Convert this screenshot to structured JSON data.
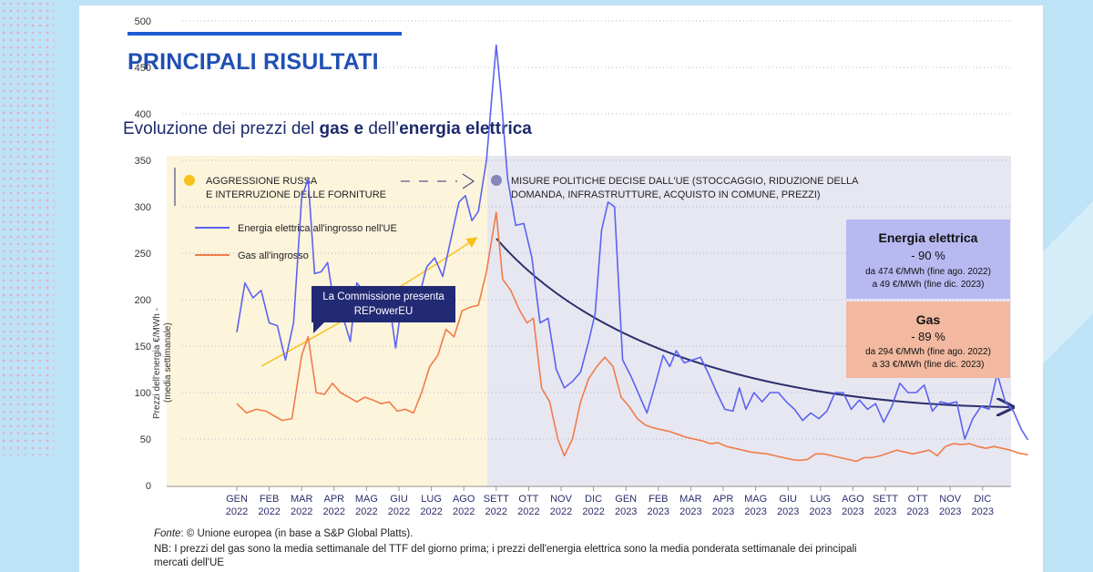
{
  "header": {
    "title": "PRINCIPALI RISULTATI",
    "subtitle_pre": "Evoluzione dei prezzi del ",
    "subtitle_b1": "gas e",
    "subtitle_mid": " dell’",
    "subtitle_b2": "energia elettrica"
  },
  "phases": {
    "phase1_line1": "AGGRESSIONE RUSSA",
    "phase1_line2": "E INTERRUZIONE DELLE FORNITURE",
    "phase2_line1": "MISURE POLITICHE DECISE DALL'UE (STOCCAGGIO, RIDUZIONE DELLA",
    "phase2_line2": "DOMANDA, INFRASTRUTTURE, ACQUISTO IN COMUNE, PREZZI)",
    "phase1_dot_color": "#f6c21a",
    "phase2_dot_color": "#8587b8"
  },
  "callout": {
    "line1": "La Commissione presenta",
    "line2": "REPowerEU"
  },
  "boxes": {
    "electricity": {
      "title": "Energia elettrica",
      "pct": "- 90 %",
      "line1": "da 474 €/MWh (fine ago. 2022)",
      "line2": "a 49 €/MWh (fine dic. 2023)",
      "color": "#b9b9f2"
    },
    "gas": {
      "title": "Gas",
      "pct": "- 89 %",
      "line1": "da 294 €/MWh (fine ago. 2022)",
      "line2": "a 33 €/MWh (fine dic. 2023)",
      "color": "#f2b9a0"
    }
  },
  "footer": {
    "source_label": "Fonte",
    "source_text": ": © Unione europea (in base a S&P Global Platts).",
    "note_line1": "NB: I prezzi del gas sono la media settimanale del TTF del giorno prima; i prezzi dell'energia elettrica sono la media ponderata settimanale dei principali",
    "note_line2": "mercati dell'UE"
  },
  "chart_data": {
    "type": "line",
    "ylabel_line1": "Prezzi dell'energia €/MWh -",
    "ylabel_line2": "(media settimanale)",
    "ylim": [
      0,
      520
    ],
    "yticks": [
      0,
      50,
      100,
      150,
      200,
      250,
      300,
      350,
      400,
      450,
      500
    ],
    "grid": "dotted-horizontal",
    "legend_placement": "top-left",
    "x_categories": [
      {
        "m": "GEN",
        "y": "2022"
      },
      {
        "m": "FEB",
        "y": "2022"
      },
      {
        "m": "MAR",
        "y": "2022"
      },
      {
        "m": "APR",
        "y": "2022"
      },
      {
        "m": "MAG",
        "y": "2022"
      },
      {
        "m": "GIU",
        "y": "2022"
      },
      {
        "m": "LUG",
        "y": "2022"
      },
      {
        "m": "AGO",
        "y": "2022"
      },
      {
        "m": "SETT",
        "y": "2022"
      },
      {
        "m": "OTT",
        "y": "2022"
      },
      {
        "m": "NOV",
        "y": "2022"
      },
      {
        "m": "DIC",
        "y": "2022"
      },
      {
        "m": "GEN",
        "y": "2023"
      },
      {
        "m": "FEB",
        "y": "2023"
      },
      {
        "m": "MAR",
        "y": "2023"
      },
      {
        "m": "APR",
        "y": "2023"
      },
      {
        "m": "MAG",
        "y": "2023"
      },
      {
        "m": "GIU",
        "y": "2023"
      },
      {
        "m": "LUG",
        "y": "2023"
      },
      {
        "m": "AGO",
        "y": "2023"
      },
      {
        "m": "SETT",
        "y": "2023"
      },
      {
        "m": "OTT",
        "y": "2023"
      },
      {
        "m": "NOV",
        "y": "2023"
      },
      {
        "m": "DIC",
        "y": "2023"
      }
    ],
    "series": [
      {
        "name": "Energia elettrica all'ingrosso nell'UE",
        "color": "#5b63f0",
        "values": [
          [
            0,
            165
          ],
          [
            0.25,
            218
          ],
          [
            0.5,
            202
          ],
          [
            0.75,
            210
          ],
          [
            1,
            175
          ],
          [
            1.25,
            172
          ],
          [
            1.5,
            135
          ],
          [
            1.75,
            175
          ],
          [
            2,
            310
          ],
          [
            2.2,
            330
          ],
          [
            2.4,
            228
          ],
          [
            2.6,
            230
          ],
          [
            2.8,
            240
          ],
          [
            3,
            195
          ],
          [
            3.2,
            190
          ],
          [
            3.5,
            155
          ],
          [
            3.7,
            218
          ],
          [
            3.9,
            210
          ],
          [
            4.1,
            190
          ],
          [
            4.3,
            205
          ],
          [
            4.5,
            178
          ],
          [
            4.7,
            198
          ],
          [
            4.9,
            148
          ],
          [
            5.1,
            200
          ],
          [
            5.35,
            180
          ],
          [
            5.6,
            200
          ],
          [
            5.85,
            235
          ],
          [
            6.1,
            245
          ],
          [
            6.35,
            225
          ],
          [
            6.6,
            265
          ],
          [
            6.85,
            305
          ],
          [
            7.05,
            312
          ],
          [
            7.25,
            285
          ],
          [
            7.45,
            295
          ],
          [
            7.7,
            350
          ],
          [
            8,
            474
          ],
          [
            8.15,
            420
          ],
          [
            8.35,
            330
          ],
          [
            8.6,
            280
          ],
          [
            8.85,
            282
          ],
          [
            9.1,
            245
          ],
          [
            9.35,
            175
          ],
          [
            9.6,
            180
          ],
          [
            9.85,
            125
          ],
          [
            10.1,
            105
          ],
          [
            10.35,
            112
          ],
          [
            10.6,
            122
          ],
          [
            10.85,
            155
          ],
          [
            11.05,
            185
          ],
          [
            11.25,
            275
          ],
          [
            11.45,
            305
          ],
          [
            11.65,
            300
          ],
          [
            11.9,
            135
          ],
          [
            12.15,
            118
          ],
          [
            12.4,
            98
          ],
          [
            12.65,
            78
          ],
          [
            12.9,
            108
          ],
          [
            13.15,
            140
          ],
          [
            13.35,
            128
          ],
          [
            13.55,
            145
          ],
          [
            13.8,
            132
          ],
          [
            14.05,
            135
          ],
          [
            14.3,
            138
          ],
          [
            14.55,
            120
          ],
          [
            14.8,
            100
          ],
          [
            15.05,
            82
          ],
          [
            15.3,
            80
          ],
          [
            15.5,
            105
          ],
          [
            15.7,
            82
          ],
          [
            15.95,
            100
          ],
          [
            16.2,
            90
          ],
          [
            16.45,
            100
          ],
          [
            16.7,
            100
          ],
          [
            16.95,
            90
          ],
          [
            17.2,
            82
          ],
          [
            17.45,
            70
          ],
          [
            17.7,
            78
          ],
          [
            17.95,
            72
          ],
          [
            18.2,
            80
          ],
          [
            18.45,
            100
          ],
          [
            18.7,
            100
          ],
          [
            18.95,
            82
          ],
          [
            19.2,
            92
          ],
          [
            19.45,
            82
          ],
          [
            19.7,
            88
          ],
          [
            19.95,
            68
          ],
          [
            20.2,
            85
          ],
          [
            20.45,
            110
          ],
          [
            20.7,
            100
          ],
          [
            20.95,
            100
          ],
          [
            21.2,
            108
          ],
          [
            21.45,
            80
          ],
          [
            21.7,
            90
          ],
          [
            21.95,
            88
          ],
          [
            22.2,
            90
          ],
          [
            22.45,
            50
          ],
          [
            22.7,
            72
          ],
          [
            22.95,
            85
          ],
          [
            23.2,
            82
          ],
          [
            23.45,
            120
          ],
          [
            23.7,
            90
          ],
          [
            23.95,
            80
          ],
          [
            24.2,
            60
          ],
          [
            24.4,
            49
          ]
        ]
      },
      {
        "name": "Gas all'ingrosso",
        "color": "#f07c48",
        "values": [
          [
            0,
            88
          ],
          [
            0.3,
            78
          ],
          [
            0.6,
            82
          ],
          [
            0.9,
            80
          ],
          [
            1.15,
            75
          ],
          [
            1.4,
            70
          ],
          [
            1.7,
            72
          ],
          [
            2,
            140
          ],
          [
            2.2,
            160
          ],
          [
            2.45,
            100
          ],
          [
            2.7,
            98
          ],
          [
            2.95,
            110
          ],
          [
            3.2,
            100
          ],
          [
            3.45,
            95
          ],
          [
            3.7,
            90
          ],
          [
            3.95,
            95
          ],
          [
            4.2,
            92
          ],
          [
            4.45,
            88
          ],
          [
            4.7,
            90
          ],
          [
            4.95,
            80
          ],
          [
            5.2,
            82
          ],
          [
            5.45,
            78
          ],
          [
            5.7,
            100
          ],
          [
            5.95,
            128
          ],
          [
            6.2,
            140
          ],
          [
            6.45,
            168
          ],
          [
            6.7,
            160
          ],
          [
            6.95,
            188
          ],
          [
            7.2,
            192
          ],
          [
            7.45,
            194
          ],
          [
            7.7,
            230
          ],
          [
            8,
            294
          ],
          [
            8.2,
            222
          ],
          [
            8.45,
            210
          ],
          [
            8.7,
            190
          ],
          [
            8.95,
            175
          ],
          [
            9.15,
            180
          ],
          [
            9.4,
            105
          ],
          [
            9.65,
            90
          ],
          [
            9.9,
            50
          ],
          [
            10.1,
            32
          ],
          [
            10.35,
            50
          ],
          [
            10.6,
            90
          ],
          [
            10.85,
            115
          ],
          [
            11.1,
            128
          ],
          [
            11.35,
            138
          ],
          [
            11.6,
            128
          ],
          [
            11.85,
            95
          ],
          [
            12.1,
            85
          ],
          [
            12.35,
            72
          ],
          [
            12.6,
            65
          ],
          [
            12.85,
            62
          ],
          [
            13.1,
            60
          ],
          [
            13.35,
            58
          ],
          [
            13.6,
            55
          ],
          [
            13.85,
            52
          ],
          [
            14.1,
            50
          ],
          [
            14.35,
            48
          ],
          [
            14.6,
            45
          ],
          [
            14.85,
            46
          ],
          [
            15.1,
            42
          ],
          [
            15.35,
            40
          ],
          [
            15.6,
            38
          ],
          [
            15.85,
            36
          ],
          [
            16.1,
            35
          ],
          [
            16.35,
            34
          ],
          [
            16.6,
            32
          ],
          [
            16.85,
            30
          ],
          [
            17.1,
            28
          ],
          [
            17.35,
            27
          ],
          [
            17.6,
            28
          ],
          [
            17.85,
            34
          ],
          [
            18.1,
            34
          ],
          [
            18.35,
            32
          ],
          [
            18.6,
            30
          ],
          [
            18.85,
            28
          ],
          [
            19.1,
            26
          ],
          [
            19.35,
            30
          ],
          [
            19.6,
            30
          ],
          [
            19.85,
            32
          ],
          [
            20.1,
            35
          ],
          [
            20.35,
            38
          ],
          [
            20.6,
            36
          ],
          [
            20.85,
            34
          ],
          [
            21.1,
            36
          ],
          [
            21.35,
            38
          ],
          [
            21.6,
            32
          ],
          [
            21.85,
            42
          ],
          [
            22.1,
            45
          ],
          [
            22.35,
            44
          ],
          [
            22.6,
            45
          ],
          [
            22.85,
            42
          ],
          [
            23.1,
            40
          ],
          [
            23.35,
            42
          ],
          [
            23.6,
            40
          ],
          [
            23.85,
            38
          ],
          [
            24.1,
            35
          ],
          [
            24.4,
            33
          ]
        ]
      }
    ]
  }
}
